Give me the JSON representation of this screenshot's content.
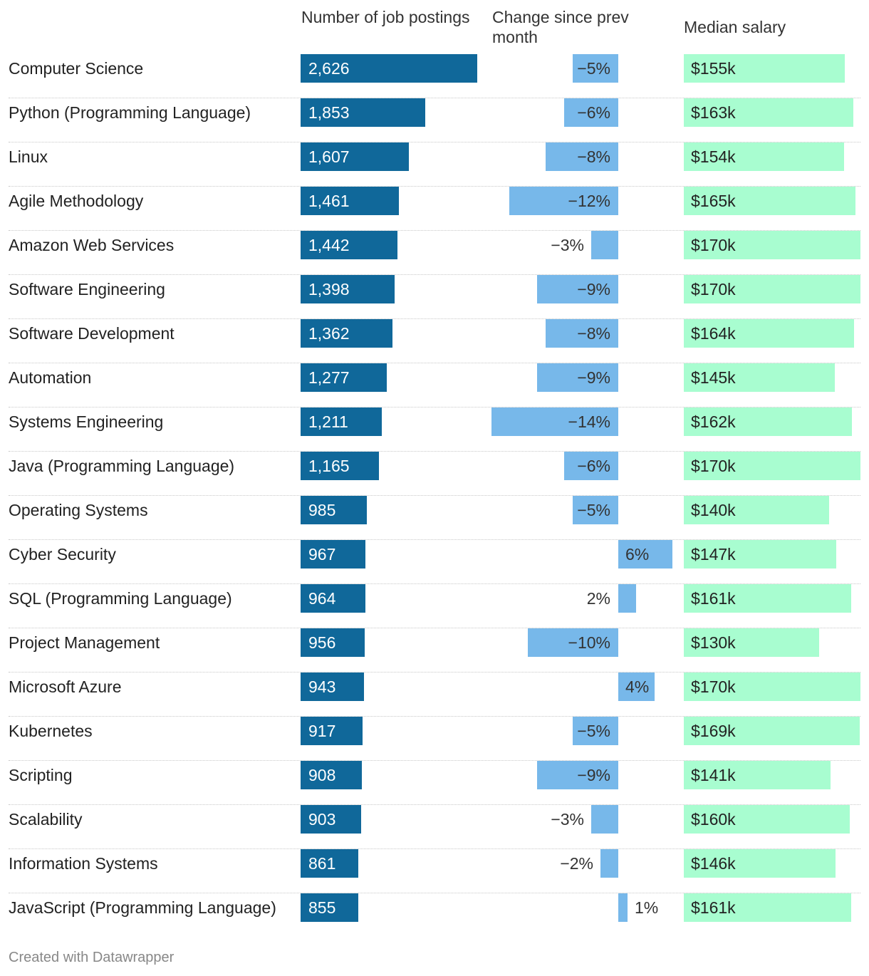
{
  "chart_data": {
    "type": "table",
    "columns": [
      "Number of job postings",
      "Change since prev month",
      "Median salary"
    ],
    "column_headers": {
      "postings": "Number of job postings",
      "change": "Change since prev month",
      "salary": "Median salary"
    },
    "rows": [
      {
        "skill": "Computer Science",
        "postings": 2626,
        "postings_label": "2,626",
        "change": -5,
        "change_label": "−5%",
        "salary": 155,
        "salary_label": "$155k"
      },
      {
        "skill": "Python (Programming Language)",
        "postings": 1853,
        "postings_label": "1,853",
        "change": -6,
        "change_label": "−6%",
        "salary": 163,
        "salary_label": "$163k"
      },
      {
        "skill": "Linux",
        "postings": 1607,
        "postings_label": "1,607",
        "change": -8,
        "change_label": "−8%",
        "salary": 154,
        "salary_label": "$154k"
      },
      {
        "skill": "Agile Methodology",
        "postings": 1461,
        "postings_label": "1,461",
        "change": -12,
        "change_label": "−12%",
        "salary": 165,
        "salary_label": "$165k"
      },
      {
        "skill": "Amazon Web Services",
        "postings": 1442,
        "postings_label": "1,442",
        "change": -3,
        "change_label": "−3%",
        "salary": 170,
        "salary_label": "$170k"
      },
      {
        "skill": "Software Engineering",
        "postings": 1398,
        "postings_label": "1,398",
        "change": -9,
        "change_label": "−9%",
        "salary": 170,
        "salary_label": "$170k"
      },
      {
        "skill": "Software Development",
        "postings": 1362,
        "postings_label": "1,362",
        "change": -8,
        "change_label": "−8%",
        "salary": 164,
        "salary_label": "$164k"
      },
      {
        "skill": "Automation",
        "postings": 1277,
        "postings_label": "1,277",
        "change": -9,
        "change_label": "−9%",
        "salary": 145,
        "salary_label": "$145k"
      },
      {
        "skill": "Systems Engineering",
        "postings": 1211,
        "postings_label": "1,211",
        "change": -14,
        "change_label": "−14%",
        "salary": 162,
        "salary_label": "$162k"
      },
      {
        "skill": "Java (Programming Language)",
        "postings": 1165,
        "postings_label": "1,165",
        "change": -6,
        "change_label": "−6%",
        "salary": 170,
        "salary_label": "$170k"
      },
      {
        "skill": "Operating Systems",
        "postings": 985,
        "postings_label": "985",
        "change": -5,
        "change_label": "−5%",
        "salary": 140,
        "salary_label": "$140k"
      },
      {
        "skill": "Cyber Security",
        "postings": 967,
        "postings_label": "967",
        "change": 6,
        "change_label": "6%",
        "salary": 147,
        "salary_label": "$147k"
      },
      {
        "skill": "SQL (Programming Language)",
        "postings": 964,
        "postings_label": "964",
        "change": 2,
        "change_label": "2%",
        "salary": 161,
        "salary_label": "$161k"
      },
      {
        "skill": "Project Management",
        "postings": 956,
        "postings_label": "956",
        "change": -10,
        "change_label": "−10%",
        "salary": 130,
        "salary_label": "$130k"
      },
      {
        "skill": "Microsoft Azure",
        "postings": 943,
        "postings_label": "943",
        "change": 4,
        "change_label": "4%",
        "salary": 170,
        "salary_label": "$170k"
      },
      {
        "skill": "Kubernetes",
        "postings": 917,
        "postings_label": "917",
        "change": -5,
        "change_label": "−5%",
        "salary": 169,
        "salary_label": "$169k"
      },
      {
        "skill": "Scripting",
        "postings": 908,
        "postings_label": "908",
        "change": -9,
        "change_label": "−9%",
        "salary": 141,
        "salary_label": "$141k"
      },
      {
        "skill": "Scalability",
        "postings": 903,
        "postings_label": "903",
        "change": -3,
        "change_label": "−3%",
        "salary": 160,
        "salary_label": "$160k"
      },
      {
        "skill": "Information Systems",
        "postings": 861,
        "postings_label": "861",
        "change": -2,
        "change_label": "−2%",
        "salary": 146,
        "salary_label": "$146k"
      },
      {
        "skill": "JavaScript (Programming Language)",
        "postings": 855,
        "postings_label": "855",
        "change": 1,
        "change_label": "1%",
        "salary": 161,
        "salary_label": "$161k"
      }
    ]
  },
  "colors": {
    "postings_bar": "#10689a",
    "change_bar": "#77b8ea",
    "salary_bar": "#a8fdd0"
  },
  "footer": "Created with Datawrapper"
}
